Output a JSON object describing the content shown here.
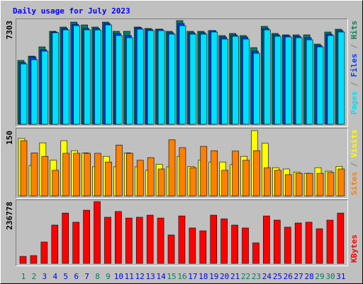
{
  "chart_data": {
    "type": "bar",
    "title": "Daily usage for July 2023",
    "categories": [
      "1",
      "2",
      "3",
      "4",
      "5",
      "6",
      "7",
      "8",
      "9",
      "10",
      "11",
      "12",
      "13",
      "14",
      "15",
      "16",
      "17",
      "18",
      "19",
      "20",
      "21",
      "22",
      "23",
      "24",
      "25",
      "26",
      "27",
      "28",
      "29",
      "30",
      "31"
    ],
    "category_colors": [
      "#00805c",
      "#00805c",
      "#0000ff",
      "#0000ff",
      "#0000ff",
      "#0000ff",
      "#0000ff",
      "#00805c",
      "#00805c",
      "#0000ff",
      "#0000ff",
      "#0000ff",
      "#0000ff",
      "#0000ff",
      "#00805c",
      "#00805c",
      "#0000ff",
      "#0000ff",
      "#0000ff",
      "#0000ff",
      "#0000ff",
      "#00805c",
      "#00805c",
      "#0000ff",
      "#0000ff",
      "#0000ff",
      "#0000ff",
      "#0000ff",
      "#00805c",
      "#00805c",
      "#0000ff"
    ],
    "separator": " / ",
    "panels": [
      {
        "ylim": [
          0,
          7303
        ],
        "yticks": [
          7303
        ],
        "series": [
          {
            "name": "Hits",
            "color": "#00805c",
            "values": [
              4500,
              4800,
              5450,
              6550,
              6850,
              7200,
              7000,
              6850,
              7200,
              6550,
              6550,
              6850,
              6750,
              6700,
              6550,
              7303,
              6550,
              6550,
              6600,
              6250,
              6400,
              6250,
              5400,
              6900,
              6400,
              6300,
              6300,
              6300,
              5650,
              6500,
              6700
            ]
          },
          {
            "name": "Files",
            "color": "#0040ff",
            "values": [
              4350,
              4750,
              5250,
              6500,
              6750,
              7050,
              6750,
              6750,
              7100,
              6400,
              6250,
              6800,
              6700,
              6700,
              6450,
              7100,
              6450,
              6450,
              6600,
              6150,
              6300,
              6150,
              5150,
              6750,
              6300,
              6250,
              6200,
              6100,
              5550,
              6350,
              6600
            ]
          },
          {
            "name": "Pages",
            "color": "#00e0ff",
            "values": [
              4250,
              4550,
              5150,
              6450,
              6650,
              6950,
              6650,
              6650,
              7000,
              6250,
              6100,
              6700,
              6600,
              6600,
              6350,
              6950,
              6350,
              6350,
              6500,
              6000,
              6200,
              6000,
              5000,
              6650,
              6200,
              6150,
              6100,
              5950,
              5450,
              6250,
              6500
            ]
          }
        ]
      },
      {
        "ylim": [
          0,
          150
        ],
        "yticks": [
          150
        ],
        "series": [
          {
            "name": "Visits",
            "color": "#ffff00",
            "values": [
              132,
              70,
              122,
              82,
              127,
              104,
              99,
              67,
              91,
              67,
              99,
              67,
              59,
              73,
              67,
              91,
              68,
              82,
              78,
              78,
              72,
              91,
              150,
              121,
              65,
              62,
              55,
              52,
              65,
              57,
              68
            ]
          },
          {
            "name": "Sites",
            "color": "#ff8000",
            "values": [
              127,
              99,
              91,
              59,
              98,
              98,
              98,
              98,
              78,
              117,
              98,
              82,
              88,
              62,
              129,
              111,
              65,
              114,
              104,
              59,
              103,
              82,
              104,
              65,
              59,
              49,
              52,
              52,
              52,
              54,
              62
            ]
          }
        ]
      },
      {
        "ylim": [
          0,
          236778
        ],
        "yticks": [
          236778
        ],
        "series": [
          {
            "name": "KBytes",
            "color": "#ff0000",
            "values": [
              27000,
              30000,
              82000,
              147000,
              193000,
              158000,
              204000,
              236778,
              177000,
              199000,
              174000,
              177000,
              185000,
              174000,
              109000,
              182000,
              136000,
              125000,
              185000,
              171000,
              147000,
              136000,
              79000,
              182000,
              166000,
              139000,
              155000,
              158000,
              133000,
              166000,
              193000
            ]
          }
        ]
      }
    ]
  }
}
